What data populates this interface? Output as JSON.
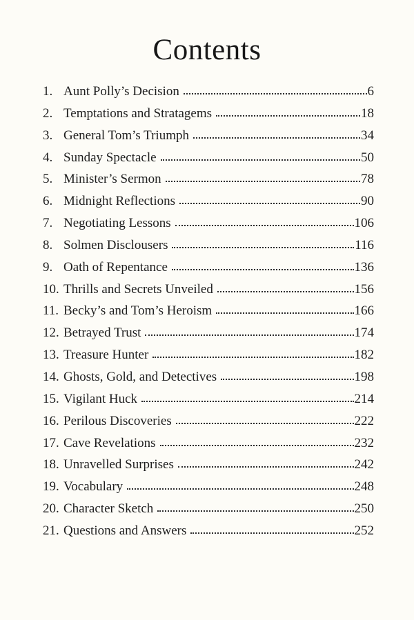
{
  "page": {
    "title": "Contents",
    "entries": [
      {
        "num": "1.",
        "title": "Aunt Polly’s Decision",
        "page": "6"
      },
      {
        "num": "2.",
        "title": "Temptations and Stratagems",
        "page": "18"
      },
      {
        "num": "3.",
        "title": "General Tom’s Triumph",
        "page": "34"
      },
      {
        "num": "4.",
        "title": "Sunday Spectacle",
        "page": "50"
      },
      {
        "num": "5.",
        "title": "Minister’s Sermon",
        "page": "78"
      },
      {
        "num": "6.",
        "title": "Midnight Reflections",
        "page": "90"
      },
      {
        "num": "7.",
        "title": "Negotiating Lessons",
        "page": "106"
      },
      {
        "num": "8.",
        "title": "Solmen Disclousers",
        "page": "116"
      },
      {
        "num": "9.",
        "title": "Oath of Repentance",
        "page": "136"
      },
      {
        "num": "10.",
        "title": "Thrills and Secrets Unveiled",
        "page": "156"
      },
      {
        "num": "11.",
        "title": "Becky’s and Tom’s Heroism",
        "page": "166"
      },
      {
        "num": "12.",
        "title": "Betrayed Trust",
        "page": "174"
      },
      {
        "num": "13.",
        "title": "Treasure Hunter",
        "page": "182"
      },
      {
        "num": "14.",
        "title": "Ghosts, Gold, and Detectives",
        "page": "198"
      },
      {
        "num": "15.",
        "title": "Vigilant Huck",
        "page": "214"
      },
      {
        "num": "16.",
        "title": "Perilous Discoveries",
        "page": "222"
      },
      {
        "num": "17.",
        "title": "Cave Revelations",
        "page": "232"
      },
      {
        "num": "18.",
        "title": "Unravelled Surprises",
        "page": "242"
      },
      {
        "num": "19.",
        "title": "Vocabulary",
        "page": "248"
      },
      {
        "num": "20.",
        "title": "Character Sketch",
        "page": "250"
      },
      {
        "num": "21.",
        "title": "Questions and Answers",
        "page": "252"
      }
    ],
    "colors": {
      "background": "#fdfcf7",
      "text": "#1e1e1e"
    }
  }
}
